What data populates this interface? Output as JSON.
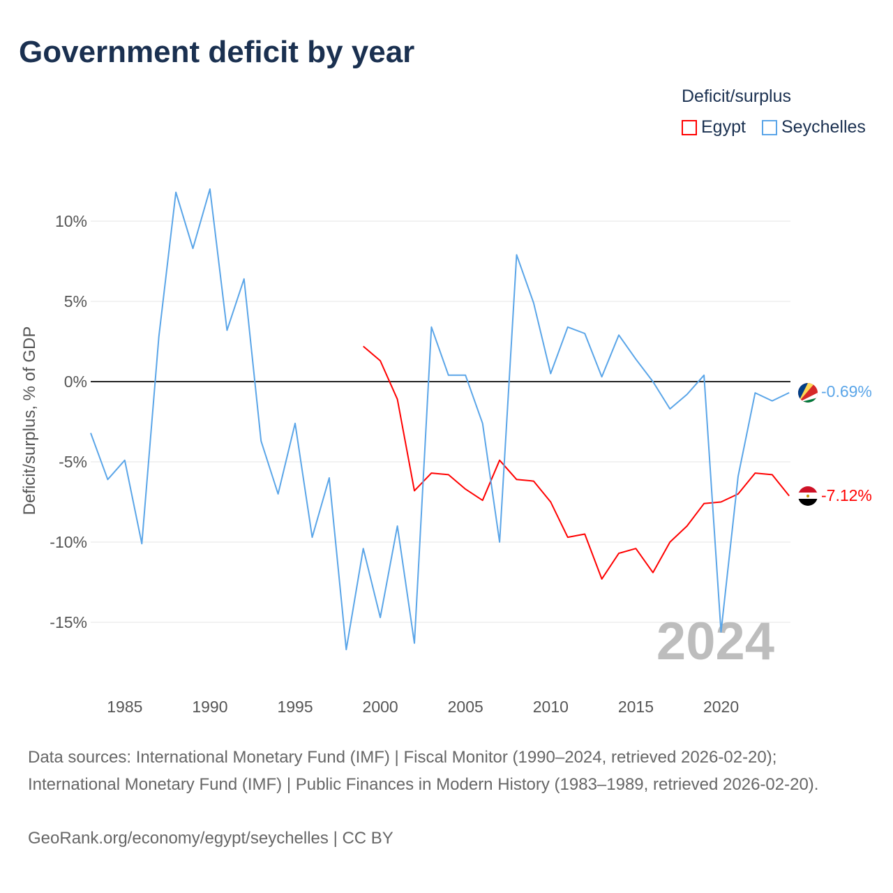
{
  "chart_data": {
    "type": "line",
    "title": "Government deficit by year",
    "ylabel": "Deficit/surplus, % of GDP",
    "xlabel": "",
    "xlim": [
      1983,
      2024
    ],
    "ylim": [
      -18,
      14
    ],
    "yticks": [
      10,
      5,
      0,
      -5,
      -10,
      -15
    ],
    "ytick_labels": [
      "10%",
      "5%",
      "0%",
      "-5%",
      "-10%",
      "-15%"
    ],
    "xticks": [
      1985,
      1990,
      1995,
      2000,
      2005,
      2010,
      2015,
      2020
    ],
    "xtick_labels": [
      "1985",
      "1990",
      "1995",
      "2000",
      "2005",
      "2010",
      "2015",
      "2020"
    ],
    "grid": true,
    "legend_title": "Deficit/surplus",
    "legend_placement": "top-right",
    "year_watermark": "2024",
    "series": [
      {
        "name": "Egypt",
        "color": "#ff0000",
        "end_label": "-7.12%",
        "x": [
          1999,
          2000,
          2001,
          2002,
          2003,
          2004,
          2005,
          2006,
          2007,
          2008,
          2009,
          2010,
          2011,
          2012,
          2013,
          2014,
          2015,
          2016,
          2017,
          2018,
          2019,
          2020,
          2021,
          2022,
          2023,
          2024
        ],
        "values": [
          2.2,
          1.3,
          -1.1,
          -6.8,
          -5.7,
          -5.8,
          -6.7,
          -7.4,
          -4.9,
          -6.1,
          -6.2,
          -7.5,
          -9.7,
          -9.5,
          -12.3,
          -10.7,
          -10.4,
          -11.9,
          -10.0,
          -9.0,
          -7.6,
          -7.5,
          -7.0,
          -5.7,
          -5.8,
          -7.12
        ]
      },
      {
        "name": "Seychelles",
        "color": "#5aa5e8",
        "end_label": "-0.69%",
        "x": [
          1983,
          1984,
          1985,
          1986,
          1987,
          1988,
          1989,
          1990,
          1991,
          1992,
          1993,
          1994,
          1995,
          1996,
          1997,
          1998,
          1999,
          2000,
          2001,
          2002,
          2003,
          2004,
          2005,
          2006,
          2007,
          2008,
          2009,
          2010,
          2011,
          2012,
          2013,
          2014,
          2015,
          2016,
          2017,
          2018,
          2019,
          2020,
          2021,
          2022,
          2023,
          2024
        ],
        "values": [
          -3.2,
          -6.1,
          -4.9,
          -10.1,
          2.8,
          11.8,
          8.3,
          12.0,
          3.2,
          6.4,
          -3.7,
          -7.0,
          -2.6,
          -9.7,
          -6.0,
          -16.7,
          -10.4,
          -14.7,
          -9.0,
          -16.3,
          3.4,
          0.4,
          0.4,
          -2.6,
          -10.0,
          7.9,
          4.9,
          0.5,
          3.4,
          3.0,
          0.3,
          2.9,
          1.4,
          0.0,
          -1.7,
          -0.8,
          0.4,
          -15.6,
          -5.9,
          -0.7,
          -1.2,
          -0.69
        ]
      }
    ]
  },
  "footer": {
    "sources": "Data sources: International Monetary Fund (IMF) | Fiscal Monitor (1990–2024, retrieved 2026-02-20); International Monetary Fund (IMF) | Public Finances in Modern History (1983–1989, retrieved 2026-02-20).",
    "credit": "GeoRank.org/economy/egypt/seychelles | CC BY"
  }
}
